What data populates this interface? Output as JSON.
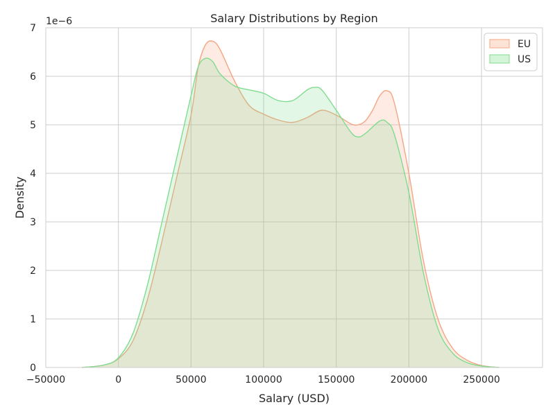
{
  "chart_data": {
    "type": "area",
    "title": "Salary Distributions by Region",
    "xlabel": "Salary (USD)",
    "ylabel": "Density",
    "y_scale_label": "1e−6",
    "xlim": [
      -50000,
      292000
    ],
    "ylim": [
      0,
      7
    ],
    "x_ticks": [
      -50000,
      0,
      50000,
      100000,
      150000,
      200000,
      250000
    ],
    "x_tick_labels": [
      "−50000",
      "0",
      "50000",
      "100000",
      "150000",
      "200000",
      "250000"
    ],
    "y_ticks": [
      0,
      1,
      2,
      3,
      4,
      5,
      6,
      7
    ],
    "y_tick_labels": [
      "0",
      "1",
      "2",
      "3",
      "4",
      "5",
      "6",
      "7"
    ],
    "grid": true,
    "legend_position": "top-right",
    "series": [
      {
        "name": "EU",
        "color": "#f4a582",
        "fill": "#fce3d6",
        "x": [
          -25000,
          -10000,
          0,
          10000,
          20000,
          30000,
          40000,
          50000,
          55000,
          60000,
          65000,
          70000,
          80000,
          90000,
          100000,
          110000,
          120000,
          130000,
          140000,
          150000,
          160000,
          165000,
          170000,
          175000,
          180000,
          185000,
          190000,
          200000,
          210000,
          220000,
          230000,
          240000,
          250000,
          262000
        ],
        "values": [
          0.0,
          0.05,
          0.18,
          0.55,
          1.4,
          2.6,
          3.9,
          5.2,
          6.2,
          6.65,
          6.72,
          6.55,
          5.9,
          5.4,
          5.22,
          5.1,
          5.05,
          5.15,
          5.3,
          5.2,
          5.02,
          5.0,
          5.08,
          5.3,
          5.6,
          5.7,
          5.45,
          4.0,
          2.2,
          1.0,
          0.4,
          0.15,
          0.04,
          0.0
        ]
      },
      {
        "name": "US",
        "color": "#7fdc8f",
        "fill": "#d5f5d9",
        "x": [
          -25000,
          -10000,
          0,
          10000,
          20000,
          30000,
          40000,
          50000,
          55000,
          60000,
          65000,
          70000,
          80000,
          90000,
          100000,
          110000,
          120000,
          130000,
          135000,
          140000,
          150000,
          160000,
          165000,
          170000,
          180000,
          185000,
          190000,
          200000,
          210000,
          220000,
          230000,
          240000,
          250000,
          262000
        ],
        "values": [
          0.0,
          0.05,
          0.2,
          0.7,
          1.7,
          3.0,
          4.3,
          5.6,
          6.2,
          6.37,
          6.3,
          6.05,
          5.8,
          5.72,
          5.65,
          5.5,
          5.5,
          5.72,
          5.77,
          5.72,
          5.3,
          4.85,
          4.75,
          4.82,
          5.08,
          5.05,
          4.8,
          3.6,
          1.95,
          0.8,
          0.3,
          0.1,
          0.03,
          0.0
        ]
      }
    ]
  }
}
